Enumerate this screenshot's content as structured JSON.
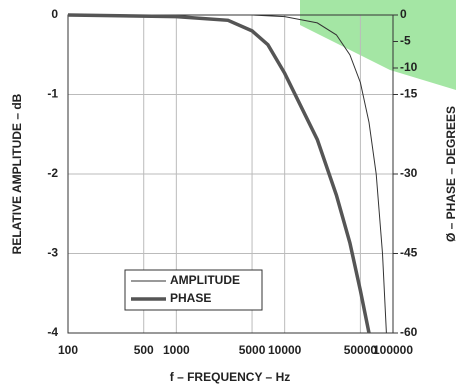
{
  "chart_data": {
    "type": "line",
    "xlabel": "f – FREQUENCY – Hz",
    "ylabel": "RELATIVE AMPLITUDE – dB",
    "y2label": "Ø – PHASE – DEGREES",
    "xscale": "log",
    "xlim": [
      100,
      100000
    ],
    "xticks": [
      100,
      500,
      1000,
      5000,
      10000,
      50000,
      100000
    ],
    "ylim": [
      -4,
      0
    ],
    "yticks": [
      0,
      -1,
      -2,
      -3,
      -4
    ],
    "y2lim": [
      -60,
      0
    ],
    "y2ticks": [
      0,
      -5,
      -10,
      -15,
      -30,
      -45,
      -60
    ],
    "grid": true,
    "legend": "lower left",
    "series": [
      {
        "name": "AMPLITUDE",
        "color": "#333333",
        "width": 1,
        "x": [
          100,
          1000,
          5000,
          10000,
          20000,
          30000,
          40000,
          50000,
          60000,
          70000,
          80000,
          87000
        ],
        "values": [
          0,
          0,
          0,
          -0.02,
          -0.1,
          -0.25,
          -0.5,
          -0.85,
          -1.35,
          -2.0,
          -3.0,
          -4
        ]
      },
      {
        "name": "PHASE",
        "color": "#555555",
        "width": 3.5,
        "axis": "y2",
        "x": [
          100,
          1000,
          3000,
          5000,
          7000,
          10000,
          20000,
          30000,
          40000,
          50000,
          60000
        ],
        "values": [
          0,
          -0.3,
          -1,
          -3,
          -5.6,
          -11,
          -23.5,
          -34,
          -43,
          -52,
          -60
        ]
      }
    ]
  }
}
